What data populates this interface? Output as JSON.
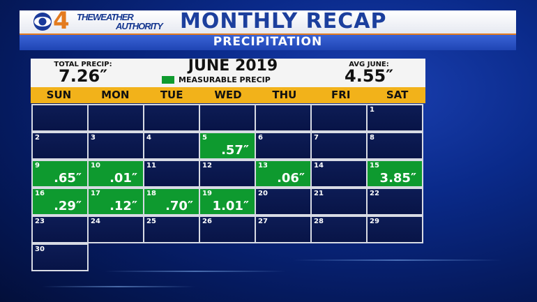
{
  "header": {
    "logo_number": "4",
    "logo_line1": "THEWEATHER",
    "logo_line2": "AUTHORITY",
    "title": "MONTHLY RECAP",
    "subtitle": "PRECIPITATION"
  },
  "panel": {
    "total_label": "TOTAL PRECIP:",
    "total_value": "7.26″",
    "month_title": "JUNE 2019",
    "legend_label": "MEASURABLE PRECIP",
    "avg_label": "AVG JUNE:",
    "avg_value": "4.55″"
  },
  "colors": {
    "measurable": "#0e9a2f",
    "dayhead": "#f2b21a",
    "cell": "#0a1850",
    "header_blue": "#1c3f9d"
  },
  "days_of_week": [
    "SUN",
    "MON",
    "TUE",
    "WED",
    "THU",
    "FRI",
    "SAT"
  ],
  "calendar": {
    "days": [
      {
        "d": "1",
        "amt": ""
      },
      {
        "d": "2",
        "amt": ""
      },
      {
        "d": "3",
        "amt": ""
      },
      {
        "d": "4",
        "amt": ""
      },
      {
        "d": "5",
        "amt": ".57″"
      },
      {
        "d": "6",
        "amt": ""
      },
      {
        "d": "7",
        "amt": ""
      },
      {
        "d": "8",
        "amt": ""
      },
      {
        "d": "9",
        "amt": ".65″"
      },
      {
        "d": "10",
        "amt": ".01″"
      },
      {
        "d": "11",
        "amt": ""
      },
      {
        "d": "12",
        "amt": ""
      },
      {
        "d": "13",
        "amt": ".06″"
      },
      {
        "d": "14",
        "amt": ""
      },
      {
        "d": "15",
        "amt": "3.85″"
      },
      {
        "d": "16",
        "amt": ".29″"
      },
      {
        "d": "17",
        "amt": ".12″"
      },
      {
        "d": "18",
        "amt": ".70″"
      },
      {
        "d": "19",
        "amt": "1.01″"
      },
      {
        "d": "20",
        "amt": ""
      },
      {
        "d": "21",
        "amt": ""
      },
      {
        "d": "22",
        "amt": ""
      },
      {
        "d": "23",
        "amt": ""
      },
      {
        "d": "24",
        "amt": ""
      },
      {
        "d": "25",
        "amt": ""
      },
      {
        "d": "26",
        "amt": ""
      },
      {
        "d": "27",
        "amt": ""
      },
      {
        "d": "28",
        "amt": ""
      },
      {
        "d": "29",
        "amt": ""
      },
      {
        "d": "30",
        "amt": ""
      }
    ]
  }
}
